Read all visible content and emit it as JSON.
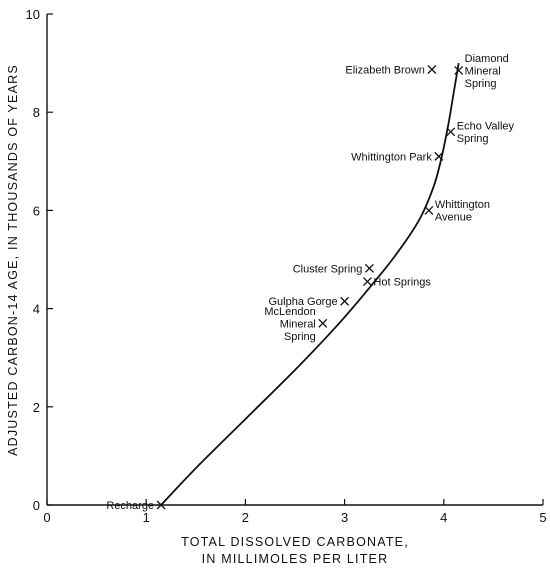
{
  "chart_data": {
    "type": "scatter",
    "title": "",
    "xlabel_lines": [
      "TOTAL DISSOLVED CARBONATE,",
      "IN MILLIMOLES PER LITER"
    ],
    "ylabel": "ADJUSTED CARBON-14 AGE, IN THOUSANDS OF YEARS",
    "xlim": [
      0,
      5
    ],
    "ylim": [
      0,
      10
    ],
    "xticks": [
      0,
      1,
      2,
      3,
      4,
      5
    ],
    "yticks": [
      0,
      2,
      4,
      6,
      8,
      10
    ],
    "grid": false,
    "points": [
      {
        "name": "Recharge",
        "lines": [
          "Recharge"
        ],
        "x": 1.15,
        "y": 0.0,
        "anchor": "left"
      },
      {
        "name": "McLendon Mineral Spring",
        "lines": [
          "McLendon",
          "Mineral",
          "Spring"
        ],
        "x": 2.78,
        "y": 3.7,
        "anchor": "left"
      },
      {
        "name": "Gulpha Gorge",
        "lines": [
          "Gulpha Gorge"
        ],
        "x": 3.0,
        "y": 4.15,
        "anchor": "left"
      },
      {
        "name": "Hot Springs",
        "lines": [
          "Hot Springs"
        ],
        "x": 3.23,
        "y": 4.55,
        "anchor": "right"
      },
      {
        "name": "Cluster Spring",
        "lines": [
          "Cluster Spring"
        ],
        "x": 3.25,
        "y": 4.82,
        "anchor": "left"
      },
      {
        "name": "Whittington Avenue",
        "lines": [
          "Whittington",
          "Avenue"
        ],
        "x": 3.85,
        "y": 6.0,
        "anchor": "right"
      },
      {
        "name": "Whittington Park",
        "lines": [
          "Whittington Park"
        ],
        "x": 3.95,
        "y": 7.1,
        "anchor": "left"
      },
      {
        "name": "Echo Valley Spring",
        "lines": [
          "Echo Valley",
          "Spring"
        ],
        "x": 4.07,
        "y": 7.6,
        "anchor": "right"
      },
      {
        "name": "Elizabeth Brown",
        "lines": [
          "Elizabeth Brown"
        ],
        "x": 3.88,
        "y": 8.87,
        "anchor": "left"
      },
      {
        "name": "Diamond Mineral Spring",
        "lines": [
          "Diamond",
          "Mineral",
          "Spring"
        ],
        "x": 4.15,
        "y": 8.85,
        "anchor": "right"
      }
    ],
    "curve": {
      "x": [
        1.15,
        1.5,
        2.0,
        2.5,
        2.9,
        3.2,
        3.5,
        3.75,
        3.9,
        3.98,
        4.05,
        4.1,
        4.15
      ],
      "y": [
        0.0,
        0.75,
        1.75,
        2.75,
        3.6,
        4.3,
        5.05,
        5.8,
        6.5,
        7.1,
        7.8,
        8.4,
        9.0
      ]
    }
  }
}
